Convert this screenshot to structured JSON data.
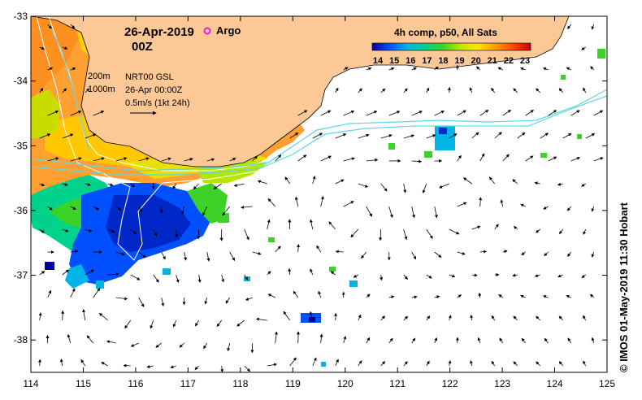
{
  "header": {
    "date": "26-Apr-2019",
    "time": "00Z",
    "argo_label": "Argo",
    "composite_title": "4h comp, p50, All Sats"
  },
  "legend": {
    "colorbar_ticks": [
      "14",
      "15",
      "16",
      "17",
      "18",
      "19",
      "20",
      "21",
      "22",
      "23"
    ],
    "colors": [
      "#0000a0",
      "#0050ff",
      "#00b4e6",
      "#00d28c",
      "#3cd228",
      "#b4e600",
      "#ffe600",
      "#ffa000",
      "#ff5000",
      "#c80000"
    ]
  },
  "annotations": {
    "isobath_200": "200m",
    "isobath_1000": "1000m",
    "altimetry": "NRT00 GSL",
    "altimetry_time": "26-Apr 00:00Z",
    "vector_scale": "0.5m/s (1kt 24h)"
  },
  "axes": {
    "x_ticks": [
      "114",
      "115",
      "116",
      "117",
      "118",
      "119",
      "120",
      "121",
      "122",
      "123",
      "124",
      "125"
    ],
    "y_ticks": [
      "-33",
      "-34",
      "-35",
      "-36",
      "-37",
      "-38"
    ]
  },
  "credit": "© IMOS 01-May-2019 11:30 Hobart",
  "colors": {
    "land": "#fcc896",
    "current_line": "#5fd6e6",
    "isobath": "#ffffff",
    "argo": "#e020e0"
  },
  "chart_data": {
    "type": "heatmap",
    "title": "4h comp, p50, All Sats",
    "xlabel": "",
    "ylabel": "",
    "xlim": [
      114,
      125
    ],
    "ylim": [
      -38.5,
      -33
    ],
    "variable_range": [
      14,
      23
    ]
  }
}
